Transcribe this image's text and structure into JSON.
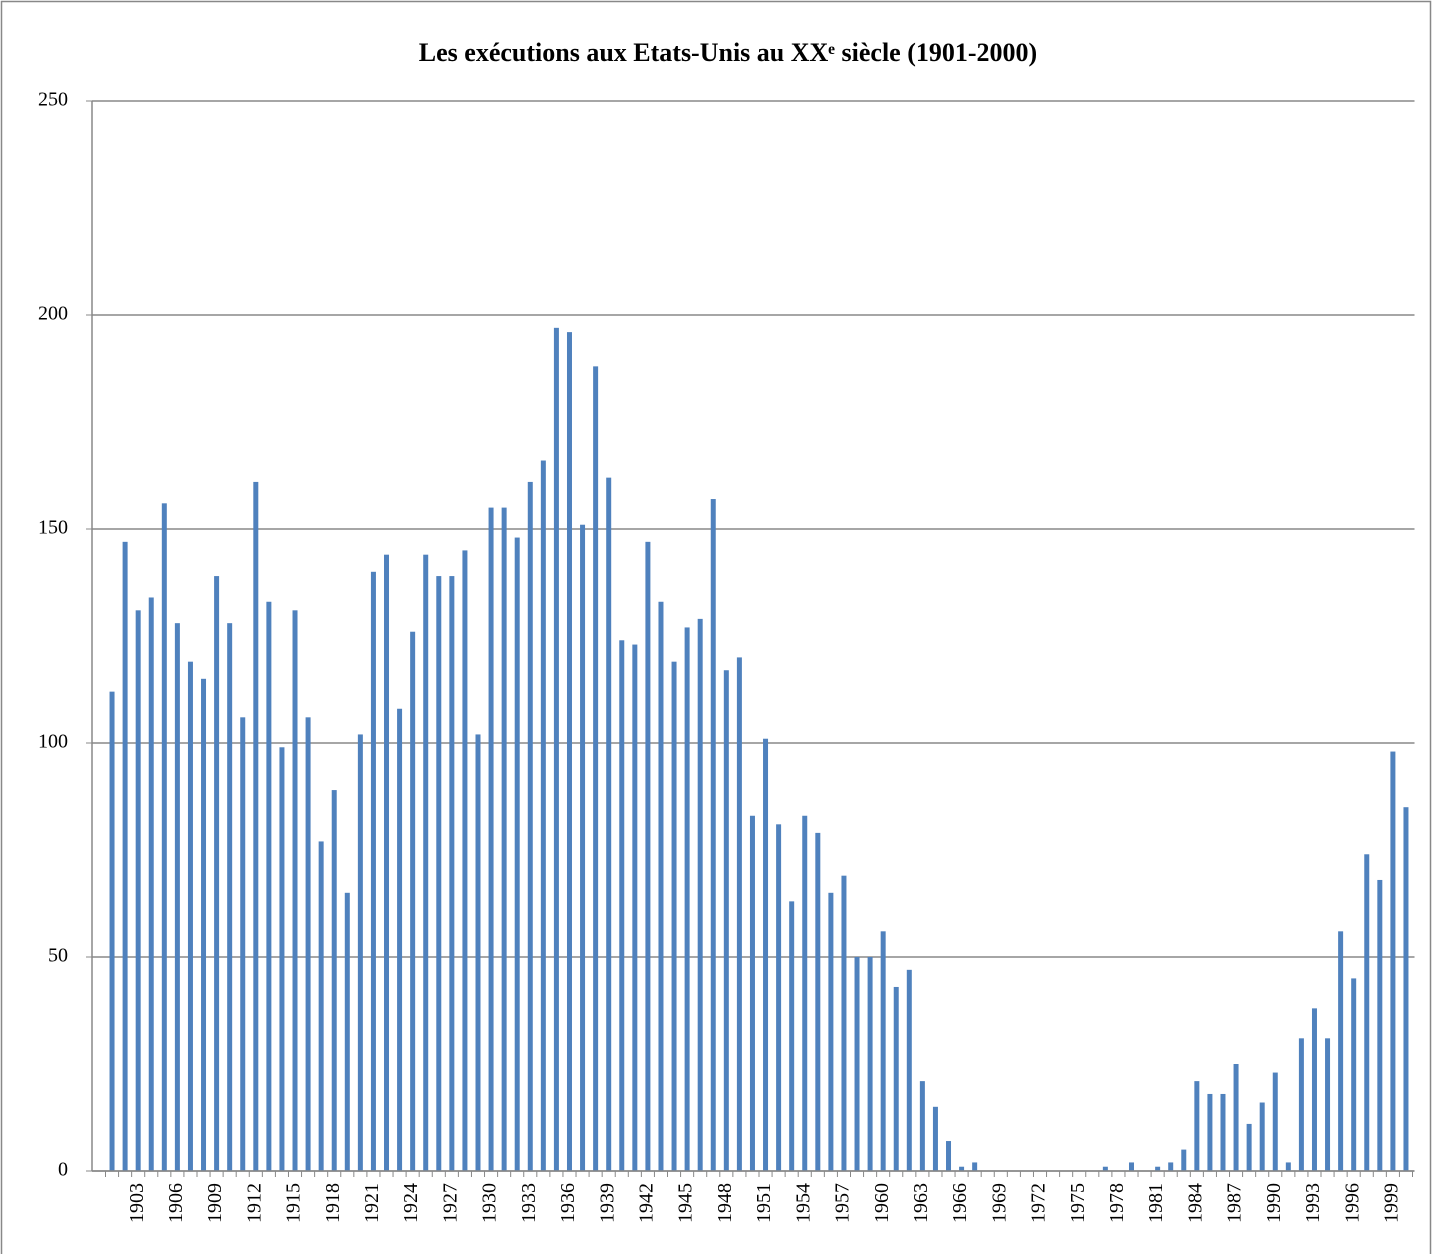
{
  "chart_data": {
    "type": "bar",
    "title": "Les exécutions aux Etats-Unis au XXᵉ siècle (1901-2000)",
    "categories": [
      null,
      null,
      "1903",
      null,
      null,
      "1906",
      null,
      null,
      "1909",
      null,
      null,
      "1912",
      null,
      null,
      "1915",
      null,
      null,
      "1918",
      null,
      null,
      "1921",
      null,
      null,
      "1924",
      null,
      null,
      "1927",
      null,
      null,
      "1930",
      null,
      null,
      "1933",
      null,
      null,
      "1936",
      null,
      null,
      "1939",
      null,
      null,
      "1942",
      null,
      null,
      "1945",
      null,
      null,
      "1948",
      null,
      null,
      "1951",
      null,
      null,
      "1954",
      null,
      null,
      "1957",
      null,
      null,
      "1960",
      null,
      null,
      "1963",
      null,
      null,
      "1966",
      null,
      null,
      "1969",
      null,
      null,
      "1972",
      null,
      null,
      "1975",
      null,
      null,
      "1978",
      null,
      null,
      "1981",
      null,
      null,
      "1984",
      null,
      null,
      "1987",
      null,
      null,
      "1990",
      null,
      null,
      "1993",
      null,
      null,
      "1996",
      null,
      null,
      "1999",
      null
    ],
    "values": [
      112,
      147,
      131,
      134,
      156,
      128,
      119,
      115,
      139,
      128,
      106,
      161,
      133,
      99,
      131,
      106,
      77,
      89,
      65,
      102,
      140,
      144,
      108,
      126,
      144,
      139,
      139,
      145,
      102,
      155,
      155,
      148,
      161,
      166,
      197,
      196,
      151,
      188,
      162,
      124,
      123,
      147,
      133,
      119,
      127,
      129,
      157,
      117,
      120,
      83,
      101,
      81,
      63,
      83,
      79,
      65,
      69,
      50,
      50,
      56,
      43,
      47,
      21,
      15,
      7,
      1,
      2,
      0,
      0,
      0,
      0,
      0,
      0,
      0,
      0,
      0,
      1,
      0,
      2,
      0,
      1,
      2,
      5,
      21,
      18,
      18,
      25,
      11,
      16,
      23,
      2,
      31,
      38,
      31,
      56,
      45,
      74,
      68,
      98,
      85
    ],
    "color": "#4f81bd",
    "ylim": [
      0,
      250
    ],
    "yticks": [
      0,
      50,
      100,
      150,
      200,
      250
    ],
    "grid": true
  }
}
